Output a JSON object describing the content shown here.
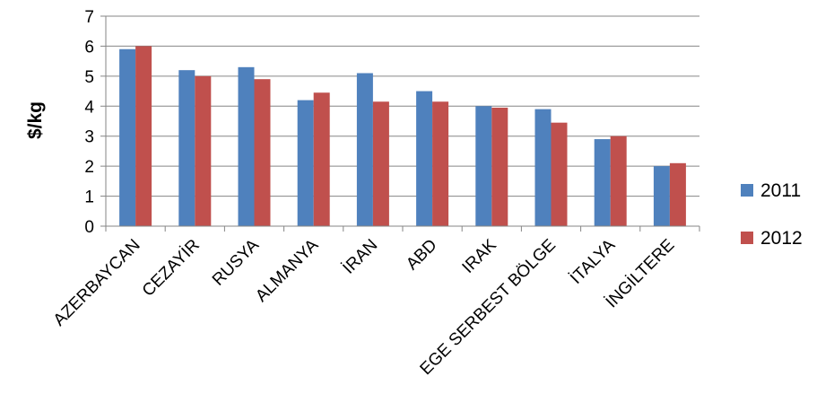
{
  "chart_data": {
    "type": "bar",
    "title": "",
    "xlabel": "",
    "ylabel": "$/kg",
    "ylim": [
      0,
      7
    ],
    "yticks": [
      0,
      1,
      2,
      3,
      4,
      5,
      6,
      7
    ],
    "grid": true,
    "legend_position": "right",
    "categories": [
      "AZERBAYCAN",
      "CEZAYİR",
      "RUSYA",
      "ALMANYA",
      "İRAN",
      "ABD",
      "IRAK",
      "EGE SERBEST BÖLGE",
      "İTALYA",
      "İNGİLTERE"
    ],
    "series": [
      {
        "name": "2011",
        "color": "#4F81BD",
        "values": [
          5.9,
          5.2,
          5.3,
          4.2,
          5.1,
          4.5,
          4.0,
          3.9,
          2.9,
          2.0
        ]
      },
      {
        "name": "2012",
        "color": "#C0504D",
        "values": [
          6.0,
          5.0,
          4.9,
          4.45,
          4.15,
          4.15,
          3.95,
          3.45,
          3.0,
          2.1
        ]
      }
    ]
  }
}
